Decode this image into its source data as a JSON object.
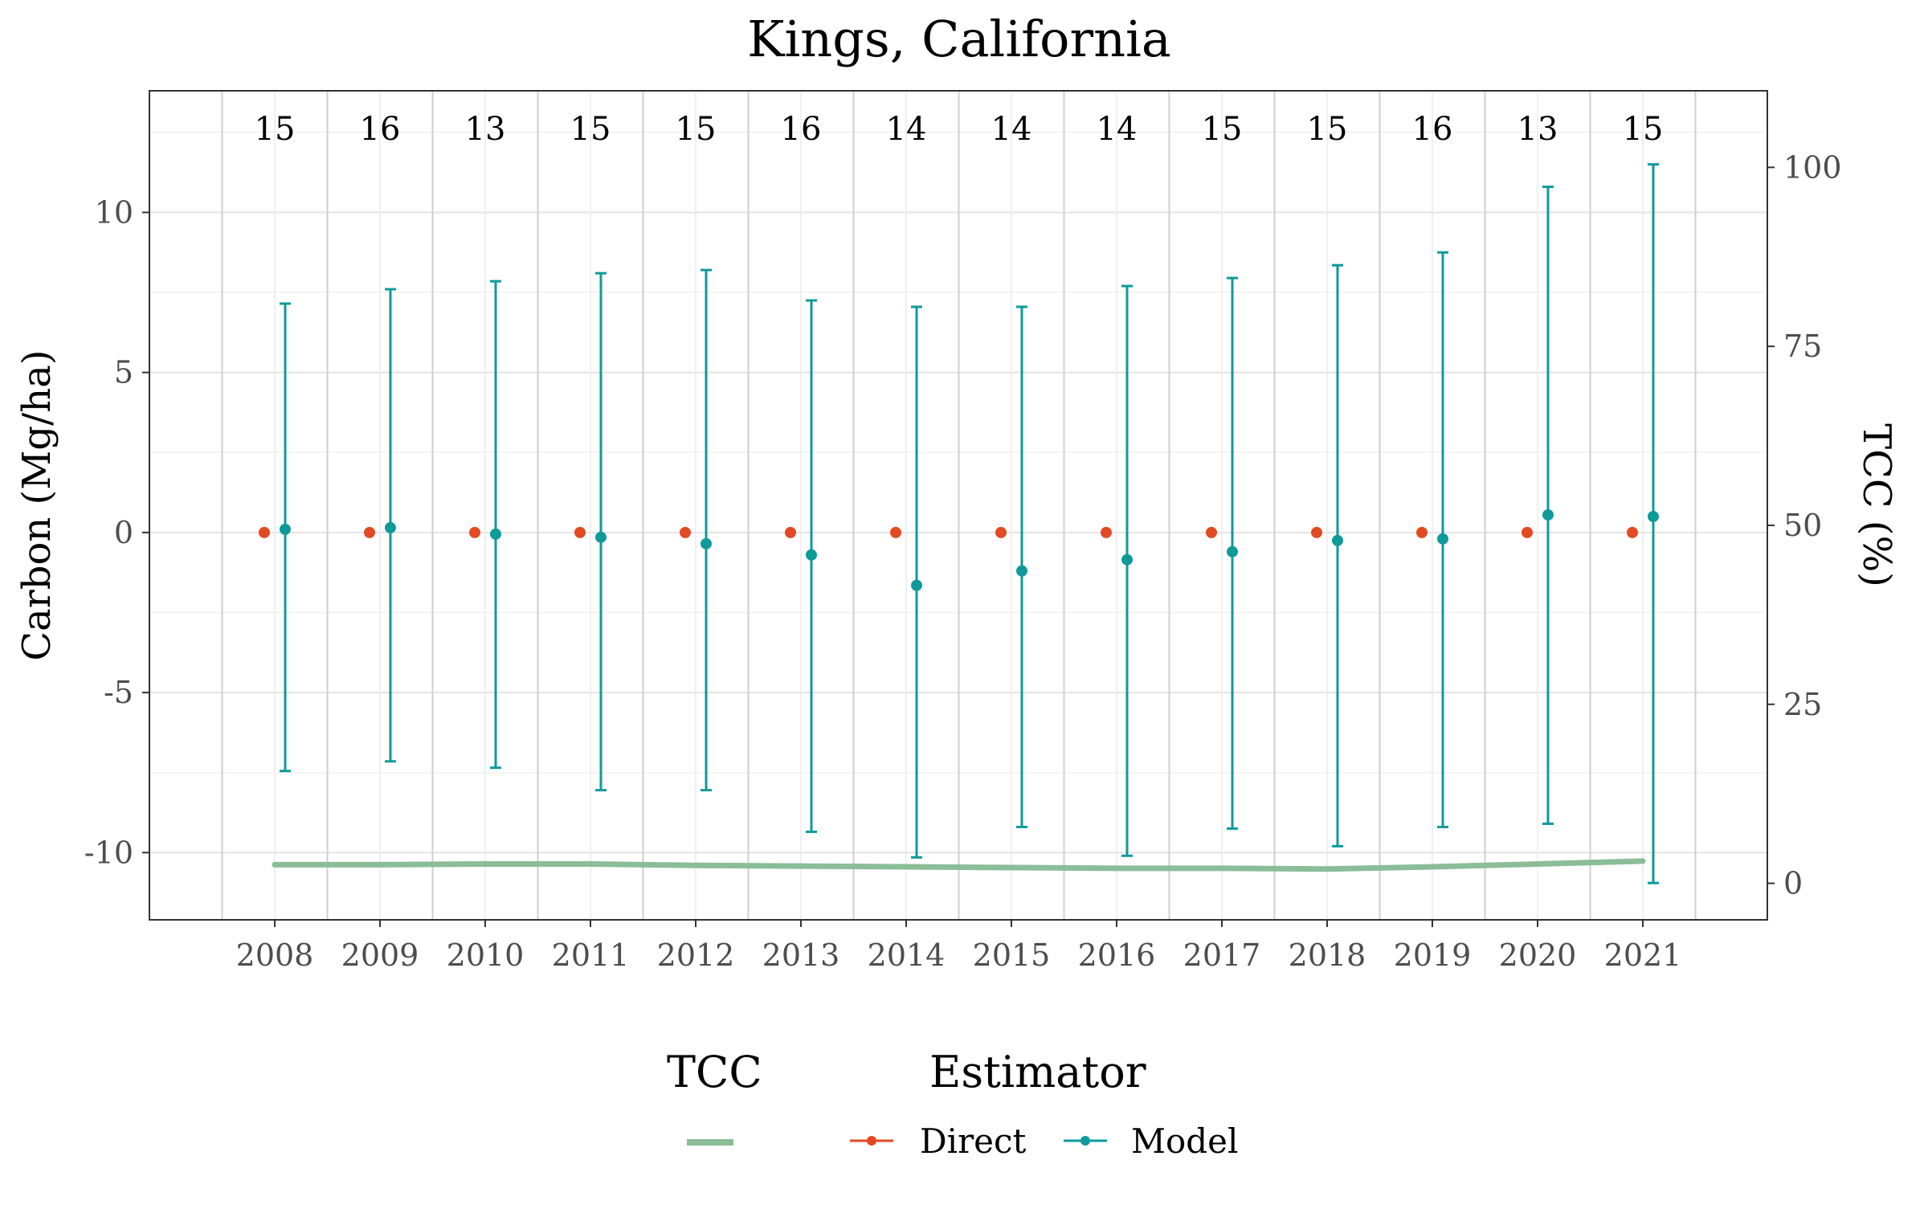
{
  "chart_data": {
    "type": "scatter",
    "title": "Kings, California",
    "ylabel": "Carbon (Mg/ha)",
    "y2label": "TCC (%)",
    "xlabel": "",
    "ylim": [
      -12.1,
      13.8
    ],
    "y2lim": [
      -5.1,
      110.7
    ],
    "yticks": [
      -10,
      -5,
      0,
      5,
      10
    ],
    "ytick_labels": [
      "-10",
      "-5",
      "0",
      "5",
      "10"
    ],
    "y2ticks": [
      0,
      25,
      50,
      75,
      100
    ],
    "y2tick_labels": [
      "0",
      "25",
      "50",
      "75",
      "100"
    ],
    "categories": [
      "2008",
      "2009",
      "2010",
      "2011",
      "2012",
      "2013",
      "2014",
      "2015",
      "2016",
      "2017",
      "2018",
      "2019",
      "2020",
      "2021"
    ],
    "sample_counts": [
      "15",
      "16",
      "13",
      "15",
      "15",
      "16",
      "14",
      "14",
      "14",
      "15",
      "15",
      "16",
      "13",
      "15"
    ],
    "series": [
      {
        "name": "Direct",
        "color": "#e34a23",
        "values": [
          0,
          0,
          0,
          0,
          0,
          0,
          0,
          0,
          0,
          0,
          0,
          0,
          0,
          0
        ]
      },
      {
        "name": "Model",
        "color": "#0f9a9a",
        "values": [
          0.1,
          0.15,
          -0.05,
          -0.15,
          -0.35,
          -0.7,
          -1.65,
          -1.2,
          -0.85,
          -0.6,
          -0.25,
          -0.2,
          0.55,
          0.5
        ],
        "upper": [
          7.15,
          7.6,
          7.85,
          8.1,
          8.2,
          7.25,
          7.05,
          7.05,
          7.7,
          7.95,
          8.35,
          8.75,
          10.8,
          11.5
        ],
        "lower": [
          -7.45,
          -7.15,
          -7.35,
          -8.05,
          -8.05,
          -9.35,
          -10.15,
          -9.2,
          -10.1,
          -9.25,
          -9.8,
          -9.2,
          -9.1,
          -10.95
        ]
      }
    ],
    "tcc": {
      "name": "TCC",
      "color": "#8bbd98",
      "values": [
        2.6,
        2.6,
        2.7,
        2.7,
        2.5,
        2.4,
        2.3,
        2.2,
        2.1,
        2.1,
        2.0,
        2.3,
        2.7,
        3.1
      ]
    },
    "grid": true,
    "legend": {
      "position": "bottom",
      "groups": [
        {
          "title": "TCC",
          "items": []
        },
        {
          "title": "Estimator",
          "items": [
            "Direct",
            "Model"
          ]
        }
      ]
    }
  }
}
